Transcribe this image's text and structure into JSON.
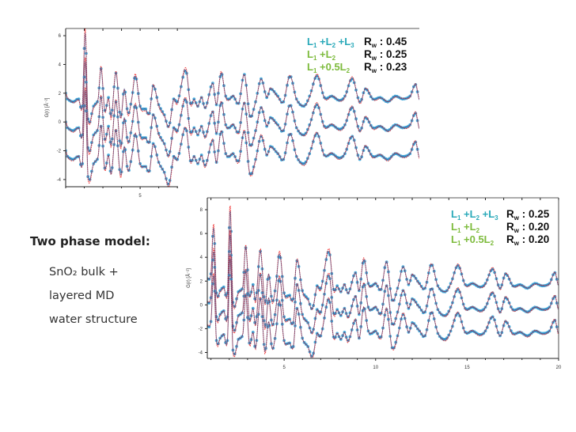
{
  "side_text": {
    "title": "Two phase model:",
    "lines": [
      "SnO₂ bulk +",
      "layered  MD",
      "water structure"
    ]
  },
  "colors": {
    "observed": "#2b9fd6",
    "calculated": "#ee2222",
    "legend_l1l2l3": "#29a9b9",
    "legend_l1l2": "#7dbb3c"
  },
  "chart_data": [
    {
      "type": "line",
      "title": "",
      "xlabel": "",
      "ylabel": "G(r) [Å⁻²]",
      "xlim": [
        1,
        20
      ],
      "ylim": [
        -4.5,
        6.5
      ],
      "xticks": [
        "5"
      ],
      "yticks": [
        "6",
        "4",
        "2",
        "0",
        "-2",
        "-4"
      ],
      "grid": false,
      "legend": {
        "placement": "top-right",
        "entries": [
          {
            "label_main": "L",
            "parts": [
              "L",
              "1",
              " +L",
              "2",
              " +L",
              "3"
            ],
            "rw": ": 0.45"
          },
          {
            "parts": [
              "L",
              "1",
              " +L",
              "2"
            ],
            "rw": ": 0.25"
          },
          {
            "parts": [
              "L",
              "1",
              " +0.5L",
              "2"
            ],
            "rw": ": 0.23"
          }
        ],
        "rw_label": "R",
        "rw_sub": "w"
      },
      "offsets": [
        2,
        0,
        -2
      ],
      "series_note_free": true,
      "profile": [
        [
          1.0,
          0.0
        ],
        [
          1.1,
          -0.4
        ],
        [
          1.4,
          -0.6
        ],
        [
          1.7,
          -0.4
        ],
        [
          1.9,
          -0.9
        ],
        [
          2.05,
          4.2
        ],
        [
          2.2,
          -1.8
        ],
        [
          2.5,
          -0.9
        ],
        [
          2.75,
          -0.4
        ],
        [
          2.9,
          1.7
        ],
        [
          3.1,
          -1.2
        ],
        [
          3.3,
          -0.3
        ],
        [
          3.45,
          -1.6
        ],
        [
          3.7,
          1.4
        ],
        [
          3.95,
          -1.7
        ],
        [
          4.15,
          0.3
        ],
        [
          4.35,
          -1.4
        ],
        [
          4.55,
          -0.4
        ],
        [
          4.75,
          1.2
        ],
        [
          5.0,
          -0.9
        ],
        [
          5.3,
          -1.1
        ],
        [
          5.5,
          -1.4
        ],
        [
          5.7,
          0.5
        ],
        [
          6.0,
          -0.8
        ],
        [
          6.3,
          -1.5
        ],
        [
          6.55,
          -2.3
        ],
        [
          6.8,
          -0.4
        ],
        [
          7.0,
          -0.6
        ],
        [
          7.45,
          1.6
        ],
        [
          7.7,
          -0.7
        ],
        [
          7.9,
          -0.4
        ],
        [
          8.1,
          -0.9
        ],
        [
          8.3,
          -0.3
        ],
        [
          8.5,
          -1.0
        ],
        [
          8.9,
          0.7
        ],
        [
          9.1,
          -0.8
        ],
        [
          9.35,
          1.4
        ],
        [
          9.6,
          -0.2
        ],
        [
          9.8,
          -0.4
        ],
        [
          10.0,
          -0.2
        ],
        [
          10.3,
          -0.7
        ],
        [
          10.6,
          1.3
        ],
        [
          10.9,
          -1.6
        ],
        [
          11.2,
          -0.6
        ],
        [
          11.5,
          1.0
        ],
        [
          11.8,
          -0.3
        ],
        [
          12.0,
          0.3
        ],
        [
          12.4,
          -0.2
        ],
        [
          12.7,
          -0.6
        ],
        [
          13.05,
          1.2
        ],
        [
          13.4,
          -0.4
        ],
        [
          13.8,
          -0.9
        ],
        [
          14.1,
          -0.2
        ],
        [
          14.5,
          1.2
        ],
        [
          14.9,
          -0.3
        ],
        [
          15.3,
          -0.2
        ],
        [
          15.7,
          -0.5
        ],
        [
          16.0,
          -0.2
        ],
        [
          16.4,
          1.0
        ],
        [
          16.8,
          -0.6
        ],
        [
          17.1,
          0.3
        ],
        [
          17.5,
          -0.4
        ],
        [
          17.9,
          -0.3
        ],
        [
          18.3,
          -0.6
        ],
        [
          18.7,
          -0.2
        ],
        [
          19.1,
          -0.4
        ],
        [
          19.5,
          -0.2
        ],
        [
          19.8,
          0.6
        ],
        [
          20.0,
          -0.5
        ]
      ]
    },
    {
      "type": "line",
      "title": "",
      "xlabel": "",
      "ylabel": "G(r) [Å⁻²]",
      "xlim": [
        0.8,
        20
      ],
      "ylim": [
        -4.5,
        9
      ],
      "xticks": [
        "5",
        "10",
        "15",
        "20"
      ],
      "yticks": [
        "8",
        "6",
        "4",
        "2",
        "0",
        "-2",
        "-4"
      ],
      "grid": false,
      "legend": {
        "placement": "top-right",
        "entries": [
          {
            "parts": [
              "L",
              "1",
              " +L",
              "2",
              " +L",
              "3"
            ],
            "rw": ": 0.25"
          },
          {
            "parts": [
              "L",
              "1",
              " +L",
              "2"
            ],
            "rw": ": 0.20"
          },
          {
            "parts": [
              "L",
              "1",
              " +0.5L",
              "2"
            ],
            "rw": ": 0.20"
          }
        ],
        "rw_label": "R",
        "rw_sub": "w"
      },
      "offsets": [
        2,
        0,
        -2
      ],
      "profile": [
        [
          0.8,
          0.2
        ],
        [
          1.0,
          0.6
        ],
        [
          1.15,
          4.5
        ],
        [
          1.3,
          -1.0
        ],
        [
          1.5,
          -0.8
        ],
        [
          1.7,
          -0.5
        ],
        [
          1.9,
          -1.0
        ],
        [
          2.05,
          6.0
        ],
        [
          2.2,
          -1.8
        ],
        [
          2.5,
          -0.9
        ],
        [
          2.75,
          -0.4
        ],
        [
          2.9,
          2.8
        ],
        [
          3.1,
          -1.2
        ],
        [
          3.3,
          -0.3
        ],
        [
          3.45,
          -1.6
        ],
        [
          3.7,
          2.5
        ],
        [
          3.95,
          -1.9
        ],
        [
          4.15,
          0.6
        ],
        [
          4.35,
          -1.7
        ],
        [
          4.55,
          -0.3
        ],
        [
          4.75,
          2.3
        ],
        [
          5.0,
          -1.0
        ],
        [
          5.3,
          -1.2
        ],
        [
          5.5,
          -1.5
        ],
        [
          5.7,
          1.7
        ],
        [
          6.0,
          -0.8
        ],
        [
          6.3,
          -1.5
        ],
        [
          6.55,
          -2.3
        ],
        [
          6.8,
          -0.4
        ],
        [
          7.0,
          -0.6
        ],
        [
          7.45,
          2.5
        ],
        [
          7.7,
          -0.7
        ],
        [
          7.9,
          -0.4
        ],
        [
          8.1,
          -0.9
        ],
        [
          8.3,
          -0.3
        ],
        [
          8.5,
          -1.0
        ],
        [
          8.9,
          0.7
        ],
        [
          9.1,
          -0.8
        ],
        [
          9.35,
          1.8
        ],
        [
          9.6,
          -0.2
        ],
        [
          9.8,
          -0.4
        ],
        [
          10.0,
          -0.2
        ],
        [
          10.3,
          -0.7
        ],
        [
          10.6,
          1.6
        ],
        [
          10.9,
          -1.6
        ],
        [
          11.2,
          -0.6
        ],
        [
          11.5,
          1.2
        ],
        [
          11.8,
          -0.3
        ],
        [
          12.0,
          0.5
        ],
        [
          12.4,
          -0.2
        ],
        [
          12.7,
          -0.6
        ],
        [
          13.05,
          1.4
        ],
        [
          13.4,
          -0.4
        ],
        [
          13.8,
          -0.9
        ],
        [
          14.1,
          -0.2
        ],
        [
          14.5,
          1.3
        ],
        [
          14.9,
          -0.3
        ],
        [
          15.3,
          -0.2
        ],
        [
          15.7,
          -0.5
        ],
        [
          16.0,
          -0.2
        ],
        [
          16.4,
          1.0
        ],
        [
          16.8,
          -0.6
        ],
        [
          17.1,
          0.6
        ],
        [
          17.5,
          -0.4
        ],
        [
          17.9,
          -0.3
        ],
        [
          18.3,
          -0.6
        ],
        [
          18.7,
          -0.2
        ],
        [
          19.1,
          -0.4
        ],
        [
          19.5,
          -0.2
        ],
        [
          19.8,
          0.7
        ],
        [
          20.0,
          -0.5
        ]
      ]
    }
  ]
}
